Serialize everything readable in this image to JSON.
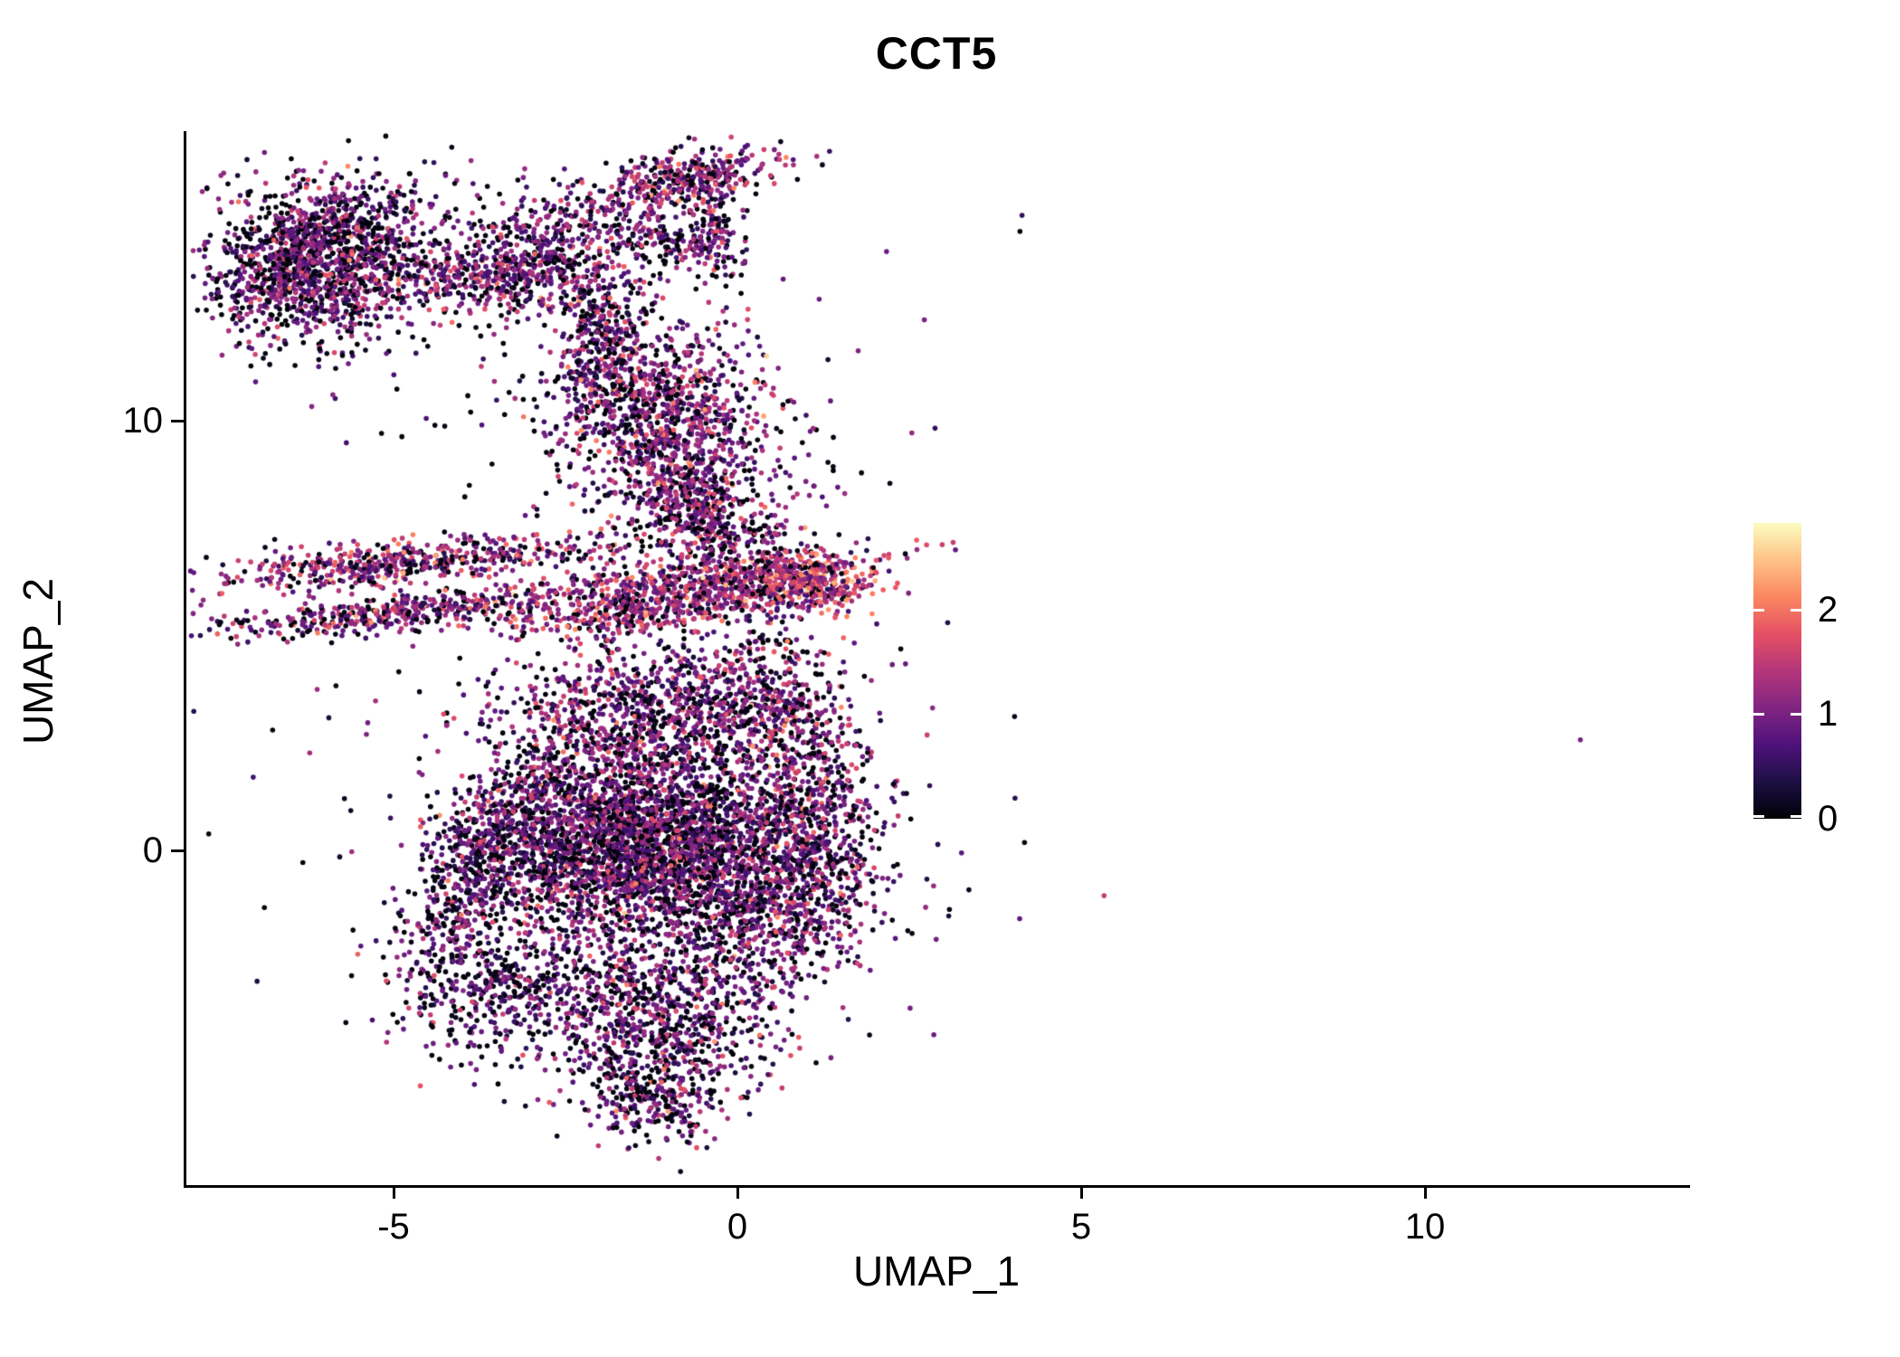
{
  "title": "CCT5",
  "colors": {
    "background": "#ffffff",
    "axis": "#000000",
    "text": "#000000"
  },
  "chart_data": {
    "type": "scatter",
    "title": "CCT5",
    "xlabel": "UMAP_1",
    "ylabel": "UMAP_2",
    "xlim": [
      -8,
      14
    ],
    "ylim": [
      -7.8,
      16.7
    ],
    "x_ticks": [
      -5,
      0,
      5,
      10
    ],
    "y_ticks": [
      0,
      10
    ],
    "grid": false,
    "legend": {
      "position": "right",
      "ticks": [
        0,
        1,
        2
      ],
      "vmax": 2.83
    },
    "colormap": {
      "name": "magma",
      "stops": [
        {
          "t": 0.0,
          "c": "#000004"
        },
        {
          "t": 0.125,
          "c": "#1c1044"
        },
        {
          "t": 0.25,
          "c": "#4f127b"
        },
        {
          "t": 0.375,
          "c": "#812581"
        },
        {
          "t": 0.5,
          "c": "#b5367a"
        },
        {
          "t": 0.625,
          "c": "#e55064"
        },
        {
          "t": 0.75,
          "c": "#fb8761"
        },
        {
          "t": 0.875,
          "c": "#fec287"
        },
        {
          "t": 1.0,
          "c": "#fcfdbf"
        }
      ]
    },
    "point_radius": 2.8,
    "clusters": [
      {
        "name": "top-left-blob",
        "cx": -6.1,
        "cy": 13.8,
        "sx": 0.75,
        "sy": 0.95,
        "rot": -20,
        "n": 1500,
        "p0": 0.32,
        "mean": 0.95,
        "sd": 0.45
      },
      {
        "name": "top-left-bridge",
        "cx": -3.9,
        "cy": 13.4,
        "sx": 0.55,
        "sy": 0.5,
        "rot": 0,
        "n": 260,
        "p0": 0.25,
        "mean": 1.0,
        "sd": 0.45
      },
      {
        "name": "top-mid-cluster",
        "cx": -2.75,
        "cy": 13.8,
        "sx": 0.5,
        "sy": 0.8,
        "rot": 15,
        "n": 420,
        "p0": 0.25,
        "mean": 1.0,
        "sd": 0.45
      },
      {
        "name": "top-cap",
        "cx": -0.75,
        "cy": 15.6,
        "sx": 0.8,
        "sy": 0.32,
        "rot": 20,
        "n": 380,
        "p0": 0.2,
        "mean": 1.1,
        "sd": 0.5
      },
      {
        "name": "top-ring-lower",
        "cx": -0.95,
        "cy": 14.15,
        "sx": 0.6,
        "sy": 0.28,
        "rot": -25,
        "n": 170,
        "p0": 0.3,
        "mean": 0.9,
        "sd": 0.45
      },
      {
        "name": "top-ring-right",
        "cx": -0.3,
        "cy": 14.7,
        "sx": 0.18,
        "sy": 0.5,
        "rot": 0,
        "n": 100,
        "p0": 0.3,
        "mean": 0.9,
        "sd": 0.45
      },
      {
        "name": "upper-stream",
        "cx": -1.95,
        "cy": 11.9,
        "sx": 0.3,
        "sy": 1.1,
        "rot": -12,
        "n": 330,
        "p0": 0.3,
        "mean": 0.9,
        "sd": 0.45
      },
      {
        "name": "mid-right-blob",
        "cx": -1.0,
        "cy": 9.8,
        "sx": 0.75,
        "sy": 1.25,
        "rot": 0,
        "n": 1050,
        "p0": 0.22,
        "mean": 1.05,
        "sd": 0.5
      },
      {
        "name": "mid-right-tail",
        "cx": -0.55,
        "cy": 7.9,
        "sx": 0.3,
        "sy": 0.6,
        "rot": 0,
        "n": 180,
        "p0": 0.25,
        "mean": 1.0,
        "sd": 0.45
      },
      {
        "name": "left-streak-upper",
        "cx": -4.85,
        "cy": 6.7,
        "sx": 1.5,
        "sy": 0.24,
        "rot": 8,
        "n": 520,
        "p0": 0.2,
        "mean": 1.15,
        "sd": 0.5
      },
      {
        "name": "left-streak-lower",
        "cx": -4.9,
        "cy": 5.55,
        "sx": 1.4,
        "sy": 0.22,
        "rot": 8,
        "n": 460,
        "p0": 0.2,
        "mean": 1.15,
        "sd": 0.5
      },
      {
        "name": "center-streak-1",
        "cx": -1.3,
        "cy": 5.6,
        "sx": 1.1,
        "sy": 0.3,
        "rot": 10,
        "n": 430,
        "p0": 0.18,
        "mean": 1.25,
        "sd": 0.5
      },
      {
        "name": "center-streak-2",
        "cx": -0.3,
        "cy": 6.35,
        "sx": 1.2,
        "sy": 0.28,
        "rot": 8,
        "n": 460,
        "p0": 0.18,
        "mean": 1.25,
        "sd": 0.5
      },
      {
        "name": "warm-knot",
        "cx": 1.05,
        "cy": 6.2,
        "sx": 0.45,
        "sy": 0.38,
        "rot": 0,
        "n": 340,
        "p0": 0.1,
        "mean": 1.55,
        "sd": 0.5
      },
      {
        "name": "streak-connector",
        "cx": -0.1,
        "cy": 7.3,
        "sx": 0.5,
        "sy": 0.5,
        "rot": 0,
        "n": 160,
        "p0": 0.3,
        "mean": 1.0,
        "sd": 0.45
      },
      {
        "name": "upper-fan",
        "cx": -1.2,
        "cy": 3.3,
        "sx": 1.1,
        "sy": 0.75,
        "rot": 0,
        "n": 820,
        "p0": 0.25,
        "mean": 1.0,
        "sd": 0.45
      },
      {
        "name": "central-mass",
        "cx": -1.6,
        "cy": 0.3,
        "sx": 1.0,
        "sy": 1.15,
        "rot": 0,
        "n": 2600,
        "p0": 0.28,
        "mean": 0.95,
        "sd": 0.45
      },
      {
        "name": "left-arm",
        "cx": -3.8,
        "cy": -0.5,
        "sx": 0.42,
        "sy": 1.5,
        "rot": -15,
        "n": 680,
        "p0": 0.33,
        "mean": 0.85,
        "sd": 0.42
      },
      {
        "name": "left-arm-hook",
        "cx": -3.3,
        "cy": -3.2,
        "sx": 0.6,
        "sy": 0.8,
        "rot": -40,
        "n": 360,
        "p0": 0.35,
        "mean": 0.8,
        "sd": 0.4
      },
      {
        "name": "center-right-mass",
        "cx": 0.1,
        "cy": -0.8,
        "sx": 0.8,
        "sy": 1.2,
        "rot": 0,
        "n": 950,
        "p0": 0.28,
        "mean": 0.95,
        "sd": 0.45
      },
      {
        "name": "bottom-lobe",
        "cx": -1.2,
        "cy": -3.9,
        "sx": 0.9,
        "sy": 1.1,
        "rot": 0,
        "n": 950,
        "p0": 0.3,
        "mean": 0.9,
        "sd": 0.45
      },
      {
        "name": "bottom-tail",
        "cx": -1.15,
        "cy": -5.9,
        "sx": 0.35,
        "sy": 0.5,
        "rot": 0,
        "n": 170,
        "p0": 0.3,
        "mean": 0.9,
        "sd": 0.45
      },
      {
        "name": "right-shoulder",
        "cx": 0.6,
        "cy": 3.6,
        "sx": 0.5,
        "sy": 0.9,
        "rot": 0,
        "n": 300,
        "p0": 0.25,
        "mean": 1.1,
        "sd": 0.45
      },
      {
        "name": "right-blob",
        "cx": 1.05,
        "cy": 0.5,
        "sx": 0.55,
        "sy": 1.5,
        "rot": 0,
        "n": 680,
        "p0": 0.25,
        "mean": 1.0,
        "sd": 0.45
      },
      {
        "name": "outlier",
        "cx": 12.25,
        "cy": 2.6,
        "sx": 0.02,
        "sy": 0.02,
        "rot": 0,
        "n": 1,
        "p0": 0.0,
        "mean": 1.0,
        "sd": 0.05
      },
      {
        "name": "scatter-top",
        "cx": -2.5,
        "cy": 12.5,
        "sx": 2.4,
        "sy": 2.0,
        "rot": 0,
        "n": 200,
        "p0": 0.4,
        "mean": 0.8,
        "sd": 0.45
      },
      {
        "name": "scatter-central",
        "cx": -1.5,
        "cy": 0.8,
        "sx": 2.6,
        "sy": 3.0,
        "rot": 0,
        "n": 300,
        "p0": 0.35,
        "mean": 0.85,
        "sd": 0.45
      },
      {
        "name": "scatter-mid",
        "cx": -0.5,
        "cy": 8.4,
        "sx": 1.1,
        "sy": 0.9,
        "rot": 0,
        "n": 120,
        "p0": 0.3,
        "mean": 0.95,
        "sd": 0.45
      }
    ]
  }
}
